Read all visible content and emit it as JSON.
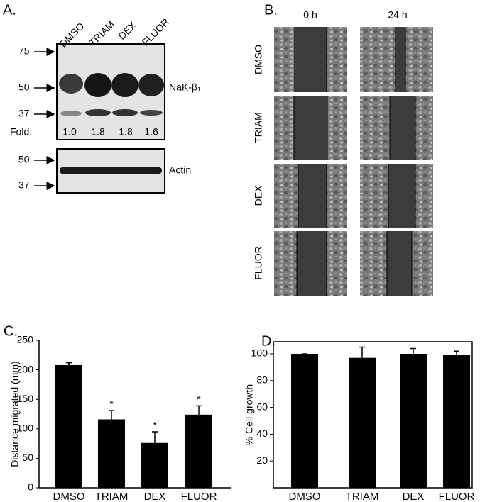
{
  "panel_a": {
    "label": "A.",
    "lanes": [
      "DMSO",
      "TRIAM",
      "DEX",
      "FLUOR"
    ],
    "blot_markers": [
      "75",
      "50",
      "37"
    ],
    "blot_protein": "NaK-β₁",
    "fold_label": "Fold:",
    "fold_values": [
      "1.0",
      "1.8",
      "1.8",
      "1.6"
    ],
    "actin_markers": [
      "50",
      "37"
    ],
    "actin_protein": "Actin"
  },
  "panel_b": {
    "label": "B.",
    "timepoints": [
      "0 h",
      "24 h"
    ],
    "treatments": [
      "DMSO",
      "TRIAM",
      "DEX",
      "FLUOR"
    ]
  },
  "chart_data": [
    {
      "type": "bar",
      "panel_label": "C.",
      "y_label": "Distance migrated (mm)",
      "categories": [
        "DMSO",
        "TRIAM",
        "DEX",
        "FLUOR"
      ],
      "values": [
        208,
        116,
        76,
        124
      ],
      "errors": [
        4,
        15,
        19,
        15
      ],
      "significance": [
        null,
        "*",
        "*",
        "*"
      ],
      "color": "#000000",
      "ylim": [
        0,
        250
      ],
      "yticks": [
        0,
        50,
        100,
        150,
        200,
        250
      ],
      "frame": false
    },
    {
      "type": "bar",
      "panel_label": "D.",
      "y_label": "% Cell growth",
      "categories": [
        "DMSO",
        "TRIAM",
        "DEX",
        "FLUOR"
      ],
      "values": [
        100,
        97,
        100,
        99
      ],
      "errors": [
        0,
        8,
        4,
        3
      ],
      "color": "#000000",
      "ylim": [
        0,
        109
      ],
      "yticks": [
        20,
        40,
        60,
        80,
        100
      ],
      "frame": true
    }
  ]
}
